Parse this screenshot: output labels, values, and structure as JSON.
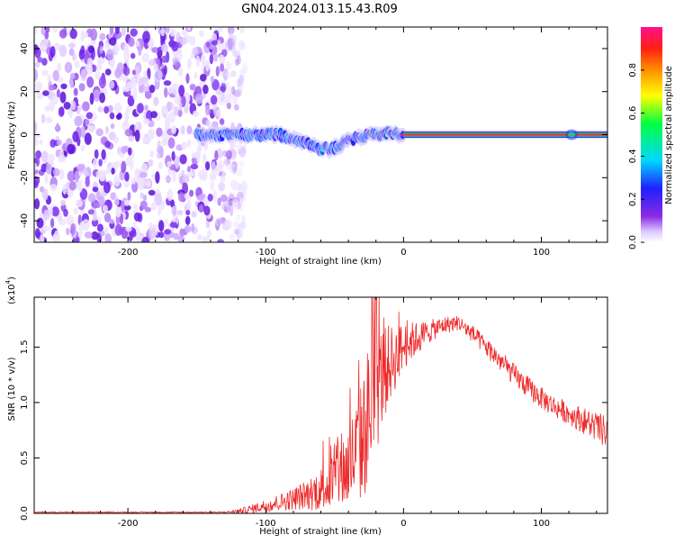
{
  "title": "GN04.2024.013.15.43.R09",
  "colors": {
    "snr_line": "#ee2b2b",
    "bright_line": "#e8343b",
    "axes": "#000000"
  },
  "chart_data": [
    {
      "type": "heatmap",
      "name": "spectrogram",
      "xlabel": "Height of straight line (km)",
      "ylabel": "Frequency (Hz)",
      "xlim": [
        -268,
        148
      ],
      "ylim": [
        -50,
        50
      ],
      "xticks": [
        -200,
        -100,
        0,
        100
      ],
      "yticks": [
        -40,
        -20,
        0,
        20,
        40
      ],
      "colorbar": {
        "label": "Normalized spectral amplitude",
        "range": [
          0.0,
          1.0
        ],
        "ticks": [
          0.0,
          0.2,
          0.4,
          0.6,
          0.8
        ],
        "colormap": "rainbow (white-purple-blue-cyan-green-yellow-orange-red-pink)"
      },
      "noise_region_x": [
        -268,
        -120
      ],
      "signal_track": {
        "x": [
          -150,
          -130,
          -115,
          -100,
          -90,
          -80,
          -70,
          -60,
          -50,
          -40,
          -35,
          -30,
          -20,
          -10,
          0,
          20,
          50,
          80,
          120,
          148
        ],
        "y": [
          0,
          0,
          0,
          0,
          0,
          -2,
          -4,
          -7,
          -6,
          -3,
          -2,
          -1,
          0,
          1,
          0,
          0,
          0,
          0,
          0,
          0
        ],
        "amplitude": [
          0.2,
          0.25,
          0.3,
          0.35,
          0.4,
          0.45,
          0.5,
          0.5,
          0.55,
          0.6,
          0.65,
          0.7,
          0.8,
          0.9,
          1.0,
          1.0,
          1.0,
          1.0,
          1.0,
          1.0
        ]
      }
    },
    {
      "type": "line",
      "name": "snr",
      "xlabel": "Height of straight line (km)",
      "ylabel": "SNR (10 * v/v)",
      "y_multiplier_label": "(x10",
      "y_multiplier_exp": "4",
      "xlim": [
        -268,
        148
      ],
      "ylim": [
        0,
        1.95
      ],
      "xticks": [
        -200,
        -100,
        0,
        100
      ],
      "yticks": [
        0.0,
        0.5,
        1.0,
        1.5
      ],
      "ytick_labels": [
        "0.0",
        "0.5",
        "1.0",
        "1.5"
      ],
      "series": [
        {
          "x": [
            -268,
            -240,
            -200,
            -160,
            -130,
            -120,
            -110,
            -100,
            -90,
            -80,
            -70,
            -60,
            -50,
            -40,
            -30,
            -25,
            -20,
            -15,
            -10,
            -5,
            0,
            5,
            10,
            20,
            30,
            40,
            50,
            60,
            70,
            80,
            90,
            100,
            110,
            120,
            130,
            140,
            148
          ],
          "y": [
            0.01,
            0.01,
            0.01,
            0.01,
            0.01,
            0.02,
            0.04,
            0.07,
            0.1,
            0.13,
            0.17,
            0.22,
            0.3,
            0.42,
            0.65,
            0.9,
            1.1,
            1.25,
            1.35,
            1.42,
            1.5,
            1.55,
            1.58,
            1.65,
            1.7,
            1.72,
            1.62,
            1.5,
            1.38,
            1.25,
            1.14,
            1.04,
            0.96,
            0.9,
            0.84,
            0.78,
            0.72
          ],
          "spread": [
            0.005,
            0.005,
            0.005,
            0.005,
            0.006,
            0.02,
            0.04,
            0.06,
            0.08,
            0.1,
            0.14,
            0.2,
            0.28,
            0.4,
            0.55,
            0.7,
            0.6,
            0.45,
            0.35,
            0.28,
            0.22,
            0.18,
            0.15,
            0.1,
            0.08,
            0.07,
            0.08,
            0.09,
            0.1,
            0.1,
            0.1,
            0.1,
            0.1,
            0.1,
            0.12,
            0.14,
            0.15
          ]
        }
      ]
    }
  ]
}
